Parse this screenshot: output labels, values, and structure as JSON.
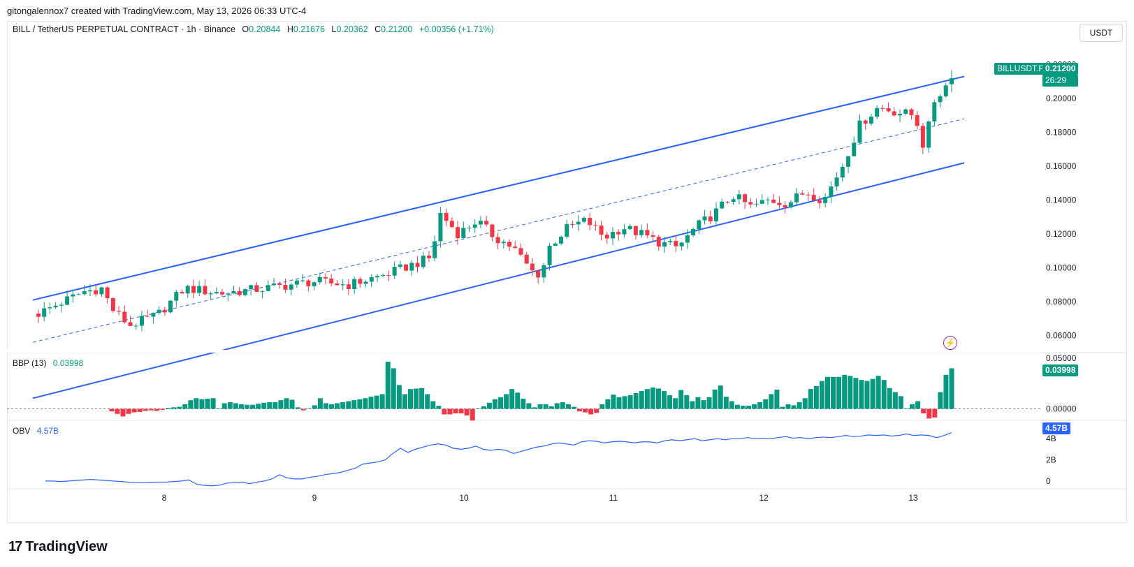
{
  "header": {
    "created_by": "gitongalennox7 created with TradingView.com, May 13, 2026 06:33 UTC-4"
  },
  "symbol": {
    "title": "BILL / TetherUS PERPETUAL CONTRACT",
    "interval": "1h",
    "exchange": "Binance",
    "open_label": "O",
    "open": "0.20844",
    "high_label": "H",
    "high": "0.21676",
    "low_label": "L",
    "low": "0.20362",
    "close_label": "C",
    "close": "0.21200",
    "change": "+0.00356 (+1.71%)",
    "currency": "USDT"
  },
  "price_tag": {
    "ticker": "BILLUSDT.P",
    "price": "0.21200",
    "countdown": "26:29"
  },
  "colors": {
    "up": "#089981",
    "down": "#f23645",
    "channel": "#2962ff",
    "obv": "#2962ff"
  },
  "icons": {
    "alert": "lightning-icon",
    "logo": "tradingview-logo"
  },
  "brand": {
    "name": "TradingView"
  },
  "bbp": {
    "label": "BBP (13)",
    "value": "0.03998"
  },
  "obv": {
    "label": "OBV",
    "value": "4.57B"
  },
  "chart_data": [
    {
      "type": "candlestick",
      "title": "BILL / TetherUS PERPETUAL CONTRACT · 1h · Binance",
      "y_ticks": [
        "0.22000",
        "0.20000",
        "0.18000",
        "0.16000",
        "0.14000",
        "0.12000",
        "0.10000",
        "0.08000",
        "0.06000"
      ],
      "ylim": [
        0.052,
        0.226
      ],
      "x_ticks": [
        "8",
        "9",
        "10",
        "11",
        "12",
        "13"
      ],
      "candles": [],
      "channel": {
        "upper": [
          [
            0.0,
            0.081
          ],
          [
            1.0,
            0.213
          ]
        ],
        "lower": [
          [
            0.0,
            0.023
          ],
          [
            1.0,
            0.162
          ]
        ],
        "middle": [
          [
            0.0,
            0.056
          ],
          [
            1.0,
            0.188
          ]
        ]
      }
    },
    {
      "type": "bar",
      "title": "BBP (13)",
      "y_ticks": [
        "0.05000",
        "0.00000"
      ],
      "ylim": [
        -0.01,
        0.052
      ],
      "values": [
        0,
        0,
        0,
        0,
        0,
        0,
        0,
        0,
        0,
        0,
        0,
        0,
        0,
        -0.0025,
        -0.005,
        -0.0075,
        -0.005,
        -0.0035,
        -0.003,
        -0.002,
        -0.0015,
        -0.002,
        -0.001,
        0.001,
        0.0015,
        0.002,
        0.0045,
        0.0085,
        0.0105,
        0.0095,
        0.01,
        0.0105,
        0.0005,
        0.0055,
        0.0065,
        0.0055,
        0.0045,
        0.004,
        0.004,
        0.005,
        0.006,
        0.0065,
        0.0065,
        0.0085,
        0.0105,
        0.009,
        0.0015,
        -0.0015,
        0.0005,
        0.0035,
        0.0105,
        0.0055,
        0.0045,
        0.0055,
        0.0065,
        0.0075,
        0.0085,
        0.0095,
        0.0105,
        0.012,
        0.013,
        0.0145,
        0.0465,
        0.04,
        0.0235,
        0.0145,
        0.0195,
        0.02,
        0.0205,
        0.0145,
        0.0075,
        0.003,
        -0.0055,
        -0.0055,
        -0.0045,
        -0.0045,
        -0.0065,
        -0.0115,
        0.0005,
        0.0025,
        0.006,
        0.0095,
        0.0115,
        0.0145,
        0.0195,
        0.016,
        0.01,
        0.0055,
        0.0015,
        0.0045,
        0.0045,
        0.0025,
        0.0055,
        0.0065,
        0.0045,
        0.002,
        -0.0025,
        -0.0035,
        -0.0055,
        -0.004,
        0.0045,
        0.0095,
        0.014,
        0.0115,
        0.0125,
        0.0135,
        0.0155,
        0.0175,
        0.0195,
        0.021,
        0.02,
        0.0175,
        0.0135,
        0.0105,
        0.0185,
        0.0135,
        0.0075,
        0.0115,
        0.0085,
        0.0115,
        0.019,
        0.023,
        0.012,
        0.0075,
        0.004,
        0.003,
        0.003,
        0.0045,
        0.0065,
        0.0095,
        0.0145,
        0.019,
        0.002,
        0.0045,
        0.0035,
        0.0065,
        0.0105,
        0.0195,
        0.0225,
        0.0275,
        0.0315,
        0.0315,
        0.0315,
        0.0335,
        0.0325,
        0.0305,
        0.0285,
        0.0275,
        0.0295,
        0.0325,
        0.0285,
        0.0205,
        0.0165,
        0.0125,
        0.0005,
        0.0045,
        0.0075,
        -0.0045,
        -0.0095,
        -0.0085,
        0.0165,
        0.0335,
        0.03998
      ]
    },
    {
      "type": "line",
      "title": "OBV",
      "y_ticks": [
        "4B",
        "2B",
        "0"
      ],
      "ylim": [
        -0.6,
        5.2
      ],
      "series": [
        {
          "values": [
            0.0,
            0.0,
            -0.05,
            0.0,
            0.05,
            0.1,
            0.15,
            0.1,
            0.05,
            0.0,
            -0.05,
            -0.1,
            -0.15,
            -0.15,
            -0.12,
            -0.1,
            -0.1,
            -0.05,
            0.0,
            0.1,
            -0.3,
            -0.4,
            -0.45,
            -0.4,
            -0.2,
            -0.15,
            -0.1,
            -0.25,
            -0.1,
            0.0,
            0.2,
            0.6,
            0.3,
            0.2,
            0.2,
            0.35,
            0.45,
            0.6,
            0.7,
            0.8,
            1.0,
            1.2,
            1.6,
            1.7,
            1.8,
            2.0,
            2.6,
            3.1,
            2.7,
            3.0,
            3.2,
            3.4,
            3.5,
            3.4,
            3.1,
            3.0,
            3.1,
            3.3,
            3.0,
            2.9,
            3.0,
            2.9,
            2.6,
            2.8,
            3.0,
            3.2,
            3.3,
            3.5,
            3.6,
            3.5,
            3.4,
            3.7,
            3.8,
            3.75,
            3.6,
            3.7,
            3.75,
            3.7,
            3.6,
            3.7,
            3.7,
            3.6,
            3.8,
            3.9,
            3.8,
            3.9,
            4.0,
            3.8,
            3.9,
            4.0,
            3.9,
            4.0,
            4.0,
            4.1,
            4.0,
            4.05,
            4.0,
            4.1,
            4.2,
            4.05,
            4.1,
            4.0,
            4.1,
            4.15,
            4.1,
            4.2,
            4.3,
            4.2,
            4.25,
            4.35,
            4.3,
            4.35,
            4.25,
            4.3,
            4.45,
            4.3,
            4.35,
            4.3,
            4.1,
            4.3,
            4.57
          ]
        }
      ]
    }
  ]
}
